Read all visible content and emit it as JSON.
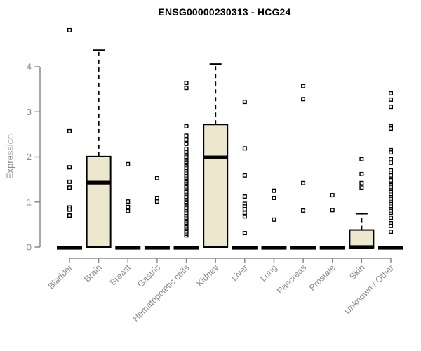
{
  "chart_data": {
    "type": "boxplot",
    "title": "ENSG00000230313 - HCG24",
    "ylabel": "Expression",
    "xlabel": "",
    "ylim": [
      0,
      4.95
    ],
    "yticks": [
      0,
      1,
      2,
      3,
      4
    ],
    "grid": false,
    "legend": false,
    "x_label_rotation": 45,
    "categories": [
      "Bladder",
      "Brain",
      "Breast",
      "Gastric",
      "Hematopoietic cells",
      "Kidney",
      "Liver",
      "Lung",
      "Pancreas",
      "Prostate",
      "Skin",
      "Unknown / Other"
    ],
    "boxes": [
      {
        "category": "Bladder",
        "q1": 0,
        "median": 0,
        "q3": 0,
        "whisker_low": 0,
        "whisker_high": 0,
        "outliers": [
          4.81,
          2.57,
          1.77,
          1.45,
          1.32,
          0.88,
          0.83,
          0.7
        ]
      },
      {
        "category": "Brain",
        "q1": 0,
        "median": 1.43,
        "q3": 2.01,
        "whisker_low": 0,
        "whisker_high": 4.37,
        "outliers": []
      },
      {
        "category": "Breast",
        "q1": 0,
        "median": 0,
        "q3": 0,
        "whisker_low": 0,
        "whisker_high": 0,
        "outliers": [
          1.84,
          1.01,
          0.89,
          0.8
        ]
      },
      {
        "category": "Gastric",
        "q1": 0,
        "median": 0,
        "q3": 0,
        "whisker_low": 0,
        "whisker_high": 0,
        "outliers": [
          1.53,
          1.09,
          1.01
        ]
      },
      {
        "category": "Hematopoietic cells",
        "q1": 0,
        "median": 0,
        "q3": 0,
        "whisker_low": 0,
        "whisker_high": 0,
        "outliers": [
          3.64,
          3.53,
          2.68,
          2.47,
          2.38,
          2.29
        ],
        "outlier_strip": {
          "from": 0.26,
          "to": 2.18,
          "count": 55
        }
      },
      {
        "category": "Kidney",
        "q1": 0,
        "median": 1.99,
        "q3": 2.72,
        "whisker_low": 0,
        "whisker_high": 4.06,
        "outliers": []
      },
      {
        "category": "Liver",
        "q1": 0,
        "median": 0,
        "q3": 0,
        "whisker_low": 0,
        "whisker_high": 0,
        "outliers": [
          3.22,
          2.19,
          1.59,
          1.12,
          0.96,
          0.9,
          0.84,
          0.76,
          0.68,
          0.31
        ]
      },
      {
        "category": "Lung",
        "q1": 0,
        "median": 0,
        "q3": 0,
        "whisker_low": 0,
        "whisker_high": 0,
        "outliers": [
          1.25,
          1.09,
          0.61
        ]
      },
      {
        "category": "Pancreas",
        "q1": 0,
        "median": 0,
        "q3": 0,
        "whisker_low": 0,
        "whisker_high": 0,
        "outliers": [
          3.57,
          3.28,
          1.42,
          0.81
        ]
      },
      {
        "category": "Prostate",
        "q1": 0,
        "median": 0,
        "q3": 0,
        "whisker_low": 0,
        "whisker_high": 0,
        "outliers": [
          1.15,
          0.82
        ]
      },
      {
        "category": "Skin",
        "q1": 0,
        "median": 0,
        "q3": 0.38,
        "whisker_low": 0,
        "whisker_high": 0.74,
        "outliers": [
          1.95,
          1.62,
          1.42,
          1.32
        ]
      },
      {
        "category": "Unknown / Other",
        "q1": 0,
        "median": 0,
        "q3": 0,
        "whisker_low": 0,
        "whisker_high": 0,
        "outliers": [
          3.41,
          3.27,
          3.11,
          2.68,
          2.63,
          2.15,
          2.1,
          1.95,
          1.87,
          1.7,
          1.65,
          1.59,
          0.65,
          0.53,
          0.47,
          0.34
        ],
        "outlier_strip": {
          "from": 0.76,
          "to": 1.48,
          "count": 20
        }
      }
    ],
    "colors": {
      "box_fill": "#EDE8CD",
      "box_border": "#000000",
      "median": "#000000",
      "outlier_fill": "#FFFFFF",
      "outlier_border": "#000000",
      "axis": "#8B8B8B",
      "tick_label": "#8B8B8B",
      "title": "#000000"
    }
  }
}
